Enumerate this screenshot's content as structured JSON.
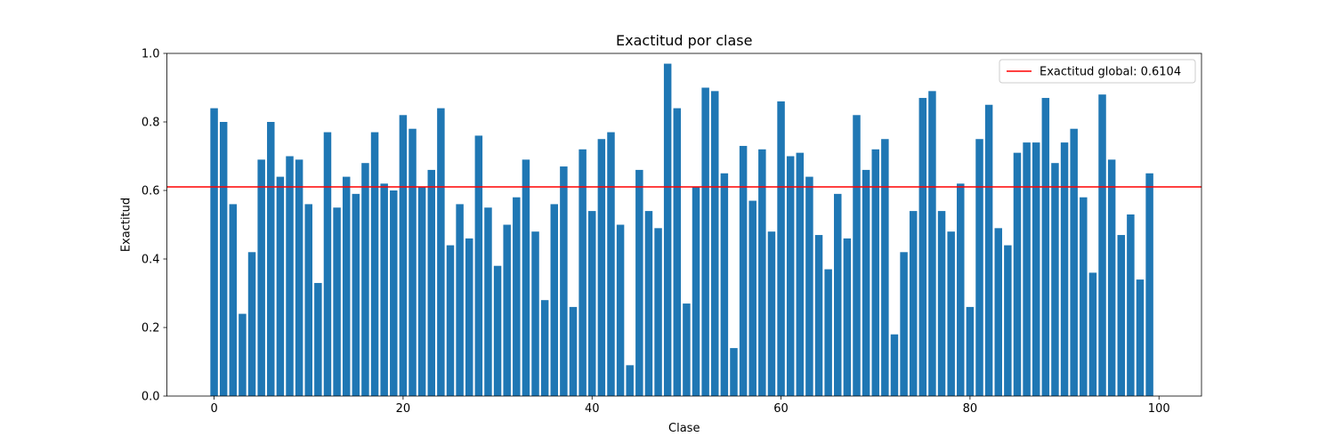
{
  "chart_data": {
    "type": "bar",
    "title": "Exactitud por clase",
    "xlabel": "Clase",
    "ylabel": "Exactitud",
    "xlim": [
      -5,
      104.5
    ],
    "ylim": [
      0,
      1.0
    ],
    "xticks": [
      0,
      20,
      40,
      60,
      80,
      100
    ],
    "xtick_labels": [
      "0",
      "20",
      "40",
      "60",
      "80",
      "100"
    ],
    "yticks": [
      0.0,
      0.2,
      0.4,
      0.6,
      0.8,
      1.0
    ],
    "ytick_labels": [
      "0.0",
      "0.2",
      "0.4",
      "0.6",
      "0.8",
      "1.0"
    ],
    "grid": false,
    "legend_position": "top-right",
    "bar_color": "#1f77b4",
    "reference_line": {
      "label": "Exactitud global: 0.6104",
      "value": 0.6104,
      "color": "#ff0000"
    },
    "categories": [
      0,
      1,
      2,
      3,
      4,
      5,
      6,
      7,
      8,
      9,
      10,
      11,
      12,
      13,
      14,
      15,
      16,
      17,
      18,
      19,
      20,
      21,
      22,
      23,
      24,
      25,
      26,
      27,
      28,
      29,
      30,
      31,
      32,
      33,
      34,
      35,
      36,
      37,
      38,
      39,
      40,
      41,
      42,
      43,
      44,
      45,
      46,
      47,
      48,
      49,
      50,
      51,
      52,
      53,
      54,
      55,
      56,
      57,
      58,
      59,
      60,
      61,
      62,
      63,
      64,
      65,
      66,
      67,
      68,
      69,
      70,
      71,
      72,
      73,
      74,
      75,
      76,
      77,
      78,
      79,
      80,
      81,
      82,
      83,
      84,
      85,
      86,
      87,
      88,
      89,
      90,
      91,
      92,
      93,
      94,
      95,
      96,
      97,
      98,
      99
    ],
    "values": [
      0.84,
      0.8,
      0.56,
      0.24,
      0.42,
      0.69,
      0.8,
      0.64,
      0.7,
      0.69,
      0.56,
      0.33,
      0.77,
      0.55,
      0.64,
      0.59,
      0.68,
      0.77,
      0.62,
      0.6,
      0.82,
      0.78,
      0.61,
      0.66,
      0.84,
      0.44,
      0.56,
      0.46,
      0.76,
      0.55,
      0.38,
      0.5,
      0.58,
      0.69,
      0.48,
      0.28,
      0.56,
      0.67,
      0.26,
      0.72,
      0.54,
      0.75,
      0.77,
      0.5,
      0.09,
      0.66,
      0.54,
      0.49,
      0.97,
      0.84,
      0.27,
      0.61,
      0.9,
      0.89,
      0.65,
      0.14,
      0.73,
      0.57,
      0.72,
      0.48,
      0.86,
      0.7,
      0.71,
      0.64,
      0.47,
      0.37,
      0.59,
      0.46,
      0.82,
      0.66,
      0.72,
      0.75,
      0.18,
      0.42,
      0.54,
      0.87,
      0.89,
      0.54,
      0.48,
      0.62,
      0.26,
      0.75,
      0.85,
      0.49,
      0.44,
      0.71,
      0.74,
      0.74,
      0.87,
      0.68,
      0.74,
      0.78,
      0.58,
      0.36,
      0.88,
      0.69,
      0.47,
      0.53,
      0.34,
      0.65
    ]
  }
}
